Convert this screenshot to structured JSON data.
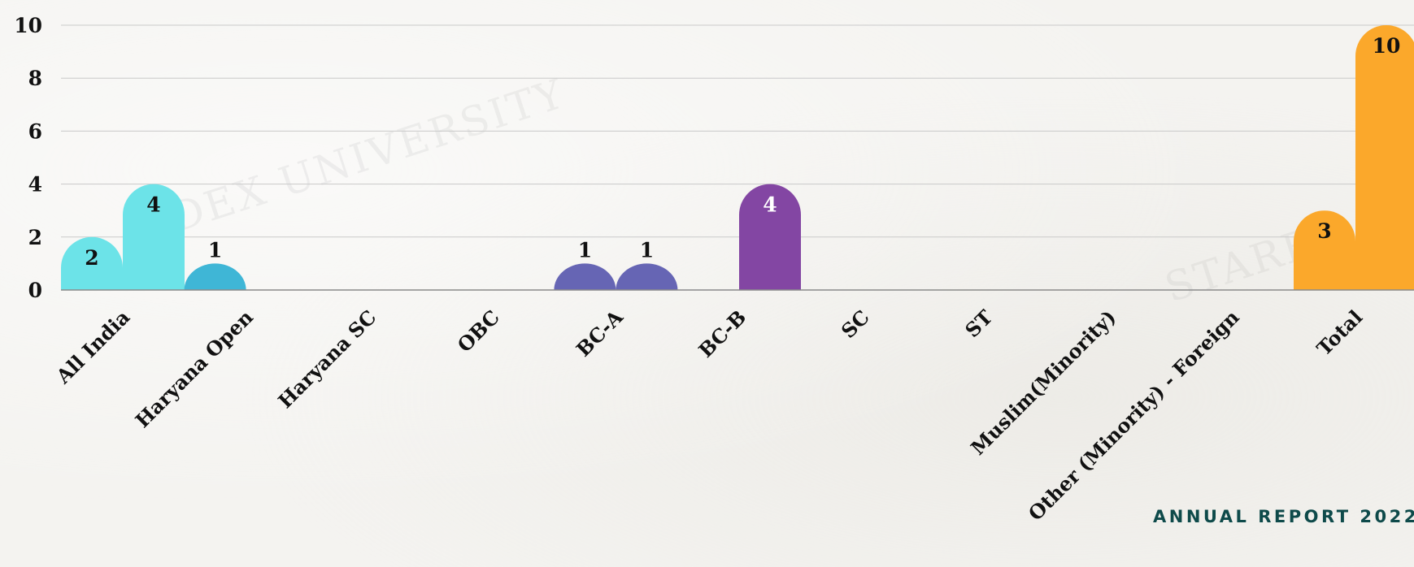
{
  "chart_data": {
    "type": "bar",
    "categories": [
      "All India",
      "Haryana Open",
      "Haryana SC",
      "OBC",
      "BC-A",
      "BC-B",
      "SC",
      "ST",
      "Muslim(Minority)",
      "Other (Minority) - Foreign",
      "Total"
    ],
    "series": [
      {
        "values": [
          2,
          1,
          0,
          0,
          1,
          0,
          0,
          0,
          0,
          0,
          3
        ]
      },
      {
        "values": [
          4,
          0,
          0,
          0,
          1,
          4,
          0,
          0,
          0,
          0,
          10
        ]
      }
    ],
    "bar_colors": [
      "#6ce3e8",
      "#3fb6d6",
      "#3fb6d6",
      "#3fb6d6",
      "#6665b4",
      "#8346a3",
      "#8346a3",
      "#8346a3",
      "#8346a3",
      "#8346a3",
      "#fba82b"
    ],
    "label_colors": [
      "#111111",
      "#111111",
      "#111111",
      "#111111",
      "#111111",
      "#ffffff",
      "#111111",
      "#111111",
      "#111111",
      "#111111",
      "#111111"
    ],
    "yticks": [
      0,
      2,
      4,
      6,
      8,
      10
    ],
    "ylim": [
      0,
      10
    ],
    "grid": true,
    "title": "",
    "xlabel": "",
    "ylabel": ""
  },
  "watermarks": [
    "ADEX UNIVERSITY",
    "STAREX"
  ],
  "footer": {
    "text": "ANNUAL REPORT 2022"
  }
}
